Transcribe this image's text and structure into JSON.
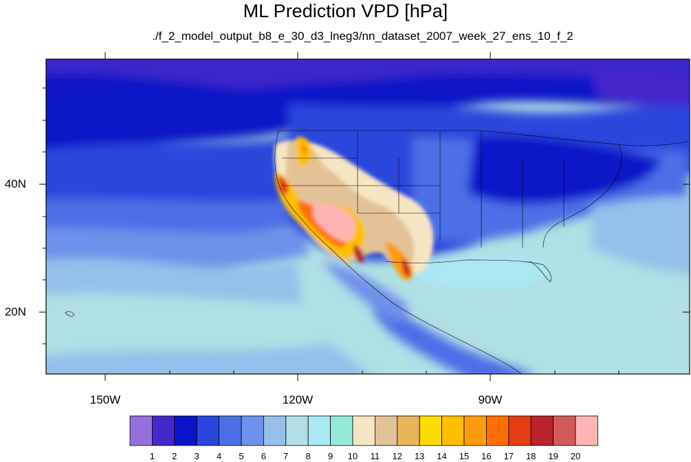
{
  "title": "ML Prediction VPD [hPa]",
  "subtitle": "./f_2_model_output_b8_e_30_d3_lneg3/nn_dataset_2007_week_27_ens_10_f_2",
  "longitude_labels": [
    "150W",
    "120W",
    "90W"
  ],
  "latitude_labels": [
    "40N",
    "20N"
  ],
  "colorbar": {
    "labels": [
      "1",
      "2",
      "3",
      "4",
      "5",
      "6",
      "7",
      "8",
      "9",
      "10",
      "11",
      "12",
      "13",
      "14",
      "15",
      "16",
      "17",
      "18",
      "19",
      "20"
    ],
    "colors": [
      "#9370db",
      "#4428c8",
      "#0a14c8",
      "#2a46dc",
      "#4b70e6",
      "#6e91ea",
      "#96c0ea",
      "#b0dfe4",
      "#a8e9f2",
      "#96e9d8",
      "#f5e6c3",
      "#e2c396",
      "#e7b45a",
      "#ffdc00",
      "#ffbe00",
      "#ff9b0f",
      "#ff6e00",
      "#e63c14",
      "#b9232a",
      "#d25a5a",
      "#ffb4b4"
    ]
  },
  "colors": {
    "land_outline": "#000000",
    "background": "#ffffff"
  }
}
